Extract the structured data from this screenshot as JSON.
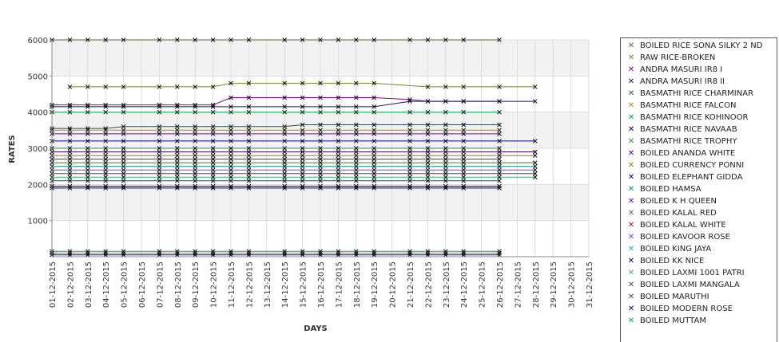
{
  "chart_data": {
    "type": "line",
    "title": "",
    "xlabel": "DAYS",
    "ylabel": "RATES",
    "ylim": [
      0,
      6000
    ],
    "yticks": [
      1000,
      2000,
      3000,
      4000,
      5000,
      6000
    ],
    "grid": true,
    "legend_position": "right",
    "x": [
      "01-12-2015",
      "02-12-2015",
      "03-12-2015",
      "04-12-2015",
      "05-12-2015",
      "06-12-2015",
      "07-12-2015",
      "08-12-2015",
      "09-12-2015",
      "10-12-2015",
      "11-12-2015",
      "12-12-2015",
      "13-12-2015",
      "14-12-2015",
      "15-12-2015",
      "16-12-2015",
      "17-12-2015",
      "18-12-2015",
      "19-12-2015",
      "20-12-2015",
      "21-12-2015",
      "22-12-2015",
      "23-12-2015",
      "24-12-2015",
      "25-12-2015",
      "26-12-2015",
      "27-12-2015",
      "28-12-2015",
      "29-12-2015",
      "30-12-2015",
      "31-12-2015"
    ],
    "series": [
      {
        "name": "BOILED RICE SONA SILKY 2 ND",
        "color": "#556b2f",
        "values": [
          6000,
          6000,
          6000,
          6000,
          6000,
          null,
          6000,
          6000,
          6000,
          6000,
          6000,
          6000,
          null,
          6000,
          6000,
          6000,
          6000,
          6000,
          6000,
          null,
          6000,
          6000,
          6000,
          6000,
          null,
          6000,
          null,
          null,
          null,
          null,
          null
        ]
      },
      {
        "name": "RAW RICE-BROKEN",
        "color": "#6b8e23",
        "values": [
          null,
          4700,
          4700,
          4700,
          4700,
          null,
          4700,
          4700,
          4700,
          4700,
          4800,
          4800,
          null,
          4800,
          4800,
          4800,
          4800,
          4800,
          4800,
          null,
          null,
          4700,
          4700,
          4700,
          null,
          4700,
          null,
          4700,
          null,
          null,
          null
        ]
      },
      {
        "name": "ANDRA MASURI IR8 I",
        "color": "#8b008b",
        "values": [
          4200,
          4200,
          4200,
          4200,
          4200,
          null,
          4200,
          4200,
          4200,
          4200,
          4400,
          4400,
          null,
          4400,
          4400,
          4400,
          4400,
          4400,
          4400,
          null,
          4350,
          4300,
          4300,
          4300,
          null,
          4300,
          null,
          null,
          null,
          null,
          null
        ]
      },
      {
        "name": "ANDRA MASURI IR8 II",
        "color": "#191970",
        "values": [
          4150,
          4150,
          4150,
          4150,
          4150,
          null,
          4150,
          4150,
          4150,
          4150,
          4150,
          4150,
          null,
          4150,
          4150,
          4150,
          4150,
          4150,
          4150,
          null,
          4300,
          4300,
          4300,
          4300,
          null,
          4300,
          null,
          4300,
          null,
          null,
          null
        ]
      },
      {
        "name": "BASMATHI RICE CHARMINAR",
        "color": "#2f4f4f",
        "values": [
          3550,
          3550,
          3550,
          3550,
          3600,
          null,
          3600,
          3600,
          3600,
          3600,
          3600,
          3600,
          null,
          3600,
          3650,
          3650,
          3650,
          3650,
          3650,
          null,
          3650,
          3650,
          3650,
          3650,
          null,
          3650,
          null,
          null,
          null,
          null,
          null
        ]
      },
      {
        "name": "BASMATHI RICE FALCON",
        "color": "#b8860b",
        "values": [
          3500,
          3500,
          3500,
          3500,
          3500,
          null,
          3500,
          3500,
          3500,
          3500,
          3500,
          3500,
          null,
          3500,
          3500,
          3500,
          3500,
          3500,
          3500,
          null,
          3500,
          3500,
          3500,
          3500,
          null,
          3500,
          null,
          null,
          null,
          null,
          null
        ]
      },
      {
        "name": "BASMATHI RICE KOHINOOR",
        "color": "#00a550",
        "values": [
          4000,
          4000,
          4000,
          4000,
          4000,
          null,
          4000,
          4000,
          4000,
          4000,
          4000,
          4000,
          null,
          4000,
          4000,
          4000,
          4000,
          4000,
          4000,
          null,
          4000,
          4000,
          4000,
          4000,
          null,
          4000,
          null,
          null,
          null,
          null,
          null
        ]
      },
      {
        "name": "BASMATHI RICE NAVAAB",
        "color": "#000080",
        "values": [
          3200,
          3200,
          3200,
          3200,
          3200,
          null,
          3200,
          3200,
          3200,
          3200,
          3200,
          3200,
          null,
          3200,
          3200,
          3200,
          3200,
          3200,
          3200,
          null,
          3200,
          3200,
          3200,
          3200,
          null,
          3200,
          null,
          3200,
          null,
          null,
          null
        ]
      },
      {
        "name": "BASMATHI RICE TROPHY",
        "color": "#2e8b57",
        "values": [
          3000,
          3000,
          3000,
          3000,
          3000,
          null,
          3000,
          3000,
          3000,
          3000,
          3000,
          3000,
          null,
          3000,
          3000,
          3000,
          3000,
          3000,
          3000,
          null,
          3000,
          3000,
          3000,
          3000,
          null,
          3000,
          null,
          null,
          null,
          null,
          null
        ]
      },
      {
        "name": "BOILED ANANDA WHITE",
        "color": "#4b0082",
        "values": [
          2900,
          2900,
          2900,
          2900,
          2900,
          null,
          2900,
          2900,
          2900,
          2900,
          2900,
          2900,
          null,
          2900,
          2900,
          2900,
          2900,
          2900,
          2900,
          null,
          2900,
          2900,
          2900,
          2900,
          null,
          2900,
          null,
          2900,
          null,
          null,
          null
        ]
      },
      {
        "name": "BOILED CURRENCY PONNI",
        "color": "#808000",
        "values": [
          2800,
          2800,
          2800,
          2800,
          2800,
          null,
          2800,
          2800,
          2800,
          2800,
          2800,
          2800,
          null,
          2800,
          2800,
          2800,
          2800,
          2800,
          2800,
          null,
          2800,
          2800,
          2800,
          2800,
          null,
          2800,
          null,
          2800,
          null,
          null,
          null
        ]
      },
      {
        "name": "BOILED ELEPHANT GIDDA",
        "color": "#00008b",
        "values": [
          1950,
          1950,
          1950,
          1950,
          1950,
          null,
          1950,
          1950,
          1950,
          1950,
          1950,
          1950,
          null,
          1950,
          1950,
          1950,
          1950,
          1950,
          1950,
          null,
          1950,
          1950,
          1950,
          1950,
          null,
          1950,
          null,
          null,
          null,
          null,
          null
        ]
      },
      {
        "name": "BOILED HAMSA",
        "color": "#008b8b",
        "values": [
          2500,
          2500,
          2500,
          2500,
          2500,
          null,
          2500,
          2500,
          2500,
          2500,
          2500,
          2500,
          null,
          2500,
          2500,
          2500,
          2500,
          2500,
          2500,
          null,
          2500,
          2500,
          2500,
          2500,
          null,
          2500,
          null,
          2500,
          null,
          null,
          null
        ]
      },
      {
        "name": "BOILED K H QUEEN",
        "color": "#6a0dad",
        "values": [
          3400,
          3400,
          3400,
          3400,
          3400,
          null,
          3400,
          3400,
          3400,
          3400,
          3400,
          3400,
          null,
          3400,
          3400,
          3400,
          3400,
          3400,
          3400,
          null,
          3400,
          3400,
          3400,
          3400,
          null,
          3400,
          null,
          null,
          null,
          null,
          null
        ]
      },
      {
        "name": "BOILED KALAL RED",
        "color": "#556b2f",
        "values": [
          2600,
          2600,
          2600,
          2600,
          2600,
          null,
          2600,
          2600,
          2600,
          2600,
          2600,
          2600,
          null,
          2600,
          2600,
          2600,
          2600,
          2600,
          2600,
          null,
          2600,
          2600,
          2600,
          2600,
          null,
          2600,
          null,
          2600,
          null,
          null,
          null
        ]
      },
      {
        "name": "BOILED KALAL WHITE",
        "color": "#8b1a4b",
        "values": [
          2700,
          2700,
          2700,
          2700,
          2700,
          null,
          2700,
          2700,
          2700,
          2700,
          2700,
          2700,
          null,
          2700,
          2700,
          2700,
          2700,
          2700,
          2700,
          null,
          2700,
          2700,
          2700,
          2700,
          null,
          2700,
          null,
          null,
          null,
          null,
          null
        ]
      },
      {
        "name": "BOILED KAVOOR ROSE",
        "color": "#9932cc",
        "values": [
          2400,
          2400,
          2400,
          2400,
          2400,
          null,
          2400,
          2400,
          2400,
          2400,
          2400,
          2400,
          null,
          2400,
          2400,
          2400,
          2400,
          2400,
          2400,
          null,
          2400,
          2400,
          2400,
          2400,
          null,
          2400,
          null,
          2400,
          null,
          null,
          null
        ]
      },
      {
        "name": "BOILED KING JAYA",
        "color": "#20b2aa",
        "values": [
          100,
          100,
          100,
          100,
          100,
          null,
          100,
          100,
          100,
          100,
          100,
          100,
          null,
          100,
          100,
          100,
          100,
          100,
          100,
          null,
          100,
          100,
          100,
          100,
          null,
          100,
          null,
          null,
          null,
          null,
          null
        ]
      },
      {
        "name": "BOILED KK NICE",
        "color": "#00008b",
        "values": [
          50,
          50,
          50,
          50,
          50,
          null,
          50,
          50,
          50,
          50,
          50,
          50,
          null,
          50,
          50,
          50,
          50,
          50,
          50,
          null,
          50,
          50,
          50,
          50,
          null,
          50,
          null,
          null,
          null,
          null,
          null
        ]
      },
      {
        "name": "BOILED LAXMI 1001 PATRI",
        "color": "#3cb371",
        "values": [
          2200,
          2200,
          2200,
          2200,
          2200,
          null,
          2200,
          2200,
          2200,
          2200,
          2200,
          2200,
          null,
          2200,
          2200,
          2200,
          2200,
          2200,
          2200,
          null,
          2200,
          2200,
          2200,
          2200,
          null,
          2200,
          null,
          2200,
          null,
          null,
          null
        ]
      },
      {
        "name": "BOILED LAXMI MANGALA",
        "color": "#483d8b",
        "values": [
          2300,
          2300,
          2300,
          2300,
          2300,
          null,
          2300,
          2300,
          2300,
          2300,
          2300,
          2300,
          null,
          2300,
          2300,
          2300,
          2300,
          2300,
          2300,
          null,
          2300,
          2300,
          2300,
          2300,
          null,
          2300,
          null,
          2300,
          null,
          null,
          null
        ]
      },
      {
        "name": "BOILED MARUTHI",
        "color": "#2f4f4f",
        "values": [
          2100,
          2100,
          2100,
          2100,
          2100,
          null,
          2100,
          2100,
          2100,
          2100,
          2100,
          2100,
          null,
          2100,
          2100,
          2100,
          2100,
          2100,
          2100,
          null,
          2100,
          2100,
          2100,
          2100,
          null,
          2100,
          null,
          null,
          null,
          null,
          null
        ]
      },
      {
        "name": "BOILED MODERN ROSE",
        "color": "#000080",
        "values": [
          1900,
          1900,
          1900,
          1900,
          1900,
          null,
          1900,
          1900,
          1900,
          1900,
          1900,
          1900,
          null,
          1900,
          1900,
          1900,
          1900,
          1900,
          1900,
          null,
          1900,
          1900,
          1900,
          1900,
          null,
          1900,
          null,
          null,
          null,
          null,
          null
        ]
      },
      {
        "name": "BOILED MUTTAM",
        "color": "#00a86b",
        "values": [
          150,
          150,
          150,
          150,
          150,
          null,
          150,
          150,
          150,
          150,
          150,
          150,
          null,
          150,
          150,
          150,
          150,
          150,
          150,
          null,
          150,
          150,
          150,
          150,
          null,
          150,
          null,
          null,
          null,
          null,
          null
        ]
      }
    ]
  }
}
